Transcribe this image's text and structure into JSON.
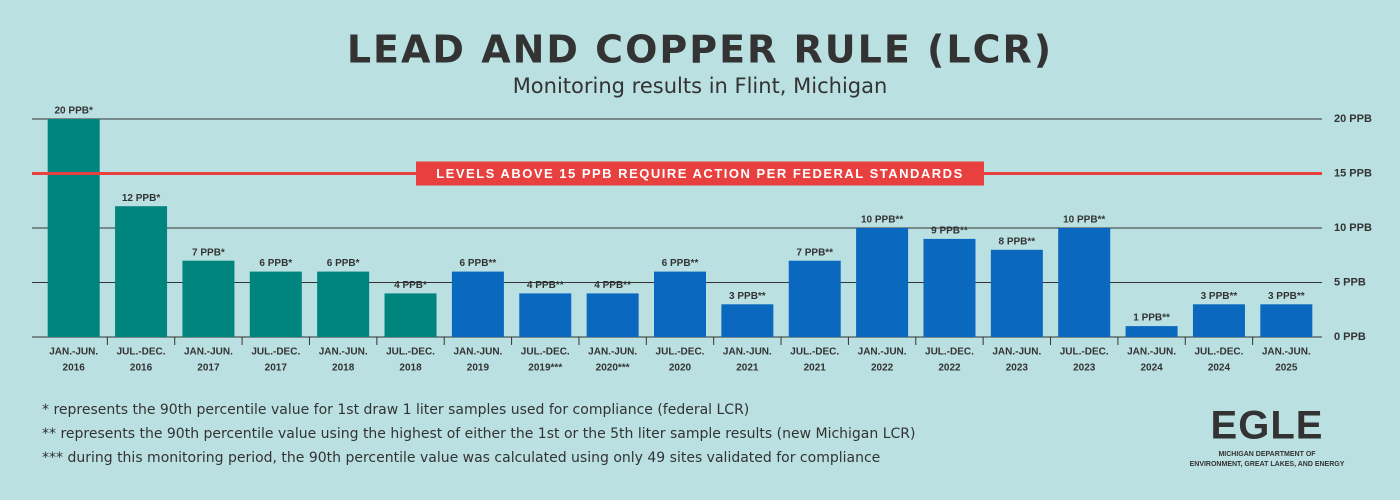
{
  "chart_data": {
    "type": "bar",
    "title": "LEAD AND COPPER RULE (LCR)",
    "subtitle": "Monitoring results in Flint, Michigan",
    "categories": [
      [
        "JAN.-JUN.",
        "2016"
      ],
      [
        "JUL.-DEC.",
        "2016"
      ],
      [
        "JAN.-JUN.",
        "2017"
      ],
      [
        "JUL.-DEC.",
        "2017"
      ],
      [
        "JAN.-JUN.",
        "2018"
      ],
      [
        "JUL.-DEC.",
        "2018"
      ],
      [
        "JAN.-JUN.",
        "2019"
      ],
      [
        "JUL.-DEC.",
        "2019***"
      ],
      [
        "JAN.-JUN.",
        "2020***"
      ],
      [
        "JUL.-DEC.",
        "2020"
      ],
      [
        "JAN.-JUN.",
        "2021"
      ],
      [
        "JUL.-DEC.",
        "2021"
      ],
      [
        "JAN.-JUN.",
        "2022"
      ],
      [
        "JUL.-DEC.",
        "2022"
      ],
      [
        "JAN.-JUN.",
        "2023"
      ],
      [
        "JUL.-DEC.",
        "2023"
      ],
      [
        "JAN.-JUN.",
        "2024"
      ],
      [
        "JUL.-DEC.",
        "2024"
      ],
      [
        "JAN.-JUN.",
        "2025"
      ]
    ],
    "values": [
      20,
      12,
      7,
      6,
      6,
      4,
      6,
      4,
      4,
      6,
      3,
      7,
      10,
      9,
      8,
      10,
      1,
      3,
      3
    ],
    "value_labels": [
      "20 PPB*",
      "12 PPB*",
      "7 PPB*",
      "6 PPB*",
      "6 PPB*",
      "4 PPB*",
      "6 PPB**",
      "4 PPB**",
      "4 PPB**",
      "6 PPB**",
      "3 PPB**",
      "7 PPB**",
      "10 PPB**",
      "9 PPB**",
      "8 PPB**",
      "10 PPB**",
      "1 PPB**",
      "3 PPB**",
      "3 PPB**"
    ],
    "colors": [
      "#00847e",
      "#00847e",
      "#00847e",
      "#00847e",
      "#00847e",
      "#00847e",
      "#0a68bf",
      "#0a68bf",
      "#0a68bf",
      "#0a68bf",
      "#0a68bf",
      "#0a68bf",
      "#0a68bf",
      "#0a68bf",
      "#0a68bf",
      "#0a68bf",
      "#0a68bf",
      "#0a68bf",
      "#0a68bf"
    ],
    "ylim": [
      0,
      20
    ],
    "yticks": [
      {
        "value": 0,
        "label": "0 PPB"
      },
      {
        "value": 5,
        "label": "5 PPB"
      },
      {
        "value": 10,
        "label": "10 PPB"
      },
      {
        "value": 15,
        "label": "15 PPB"
      },
      {
        "value": 20,
        "label": "20 PPB"
      }
    ],
    "grid": true,
    "threshold": {
      "value": 15,
      "label": "LEVELS ABOVE 15 PPB REQUIRE ACTION PER FEDERAL STANDARDS",
      "color": "#e8403f"
    },
    "footnotes": [
      "* represents the 90th percentile value for 1st draw 1 liter samples used for compliance (federal LCR)",
      "** represents the 90th percentile value using the highest of either the 1st or the 5th liter sample results (new Michigan LCR)",
      "*** during this monitoring period, the 90th percentile value was calculated using only 49 sites validated for compliance"
    ]
  },
  "logo": {
    "name": "EGLE",
    "line1": "MICHIGAN DEPARTMENT OF",
    "line2": "ENVIRONMENT, GREAT LAKES, AND ENERGY"
  }
}
